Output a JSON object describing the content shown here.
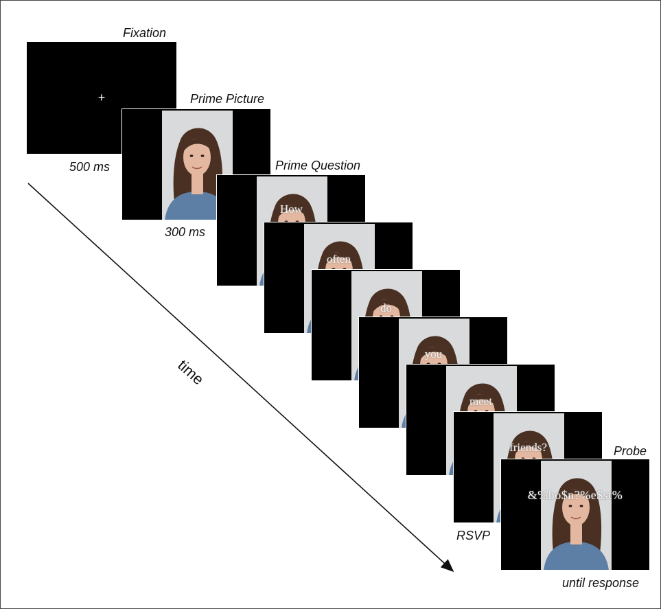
{
  "labels": {
    "fixation": "Fixation",
    "prime_picture": "Prime Picture",
    "prime_question": "Prime Question",
    "probe": "Probe",
    "duration_fixation": "500 ms",
    "duration_prime_picture": "300 ms",
    "rsvp": "RSVP",
    "until_response": "until response",
    "time_axis": "time"
  },
  "fixation_symbol": "+",
  "rsvp_words": [
    "How",
    "often",
    "do",
    "you",
    "meet",
    "friends?"
  ],
  "probe_text": "&%ho$n?%e$st%",
  "colors": {
    "screen": "#000000",
    "photo_background": "#d9dadc",
    "hair": "#4a3022",
    "skin": "#e4b8a0",
    "shirt": "#5d7fa6",
    "arrow": "#111111"
  }
}
